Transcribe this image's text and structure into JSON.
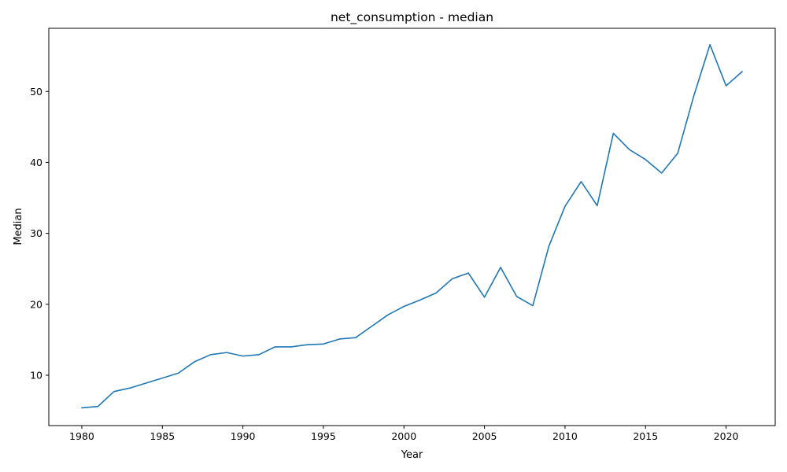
{
  "chart_data": {
    "type": "line",
    "title": "net_consumption - median",
    "xlabel": "Year",
    "ylabel": "Median",
    "xlim": [
      1977.95,
      2023.05
    ],
    "ylim": [
      2.9,
      58.9
    ],
    "xticks": [
      1980,
      1985,
      1990,
      1995,
      2000,
      2005,
      2010,
      2015,
      2020
    ],
    "yticks": [
      10,
      20,
      30,
      40,
      50
    ],
    "grid": false,
    "legend": "none",
    "series": [
      {
        "color": "#1f77b4",
        "x": [
          1980,
          1981,
          1982,
          1983,
          1984,
          1985,
          1986,
          1987,
          1988,
          1989,
          1990,
          1991,
          1992,
          1993,
          1994,
          1995,
          1996,
          1997,
          1998,
          1999,
          2000,
          2001,
          2002,
          2003,
          2004,
          2005,
          2006,
          2007,
          2008,
          2009,
          2010,
          2011,
          2012,
          2013,
          2014,
          2015,
          2016,
          2017,
          2018,
          2019,
          2020,
          2021
        ],
        "values": [
          5.4,
          5.6,
          7.7,
          8.2,
          8.9,
          9.6,
          10.3,
          11.9,
          12.9,
          13.2,
          12.7,
          12.9,
          14.0,
          14.0,
          14.3,
          14.4,
          15.1,
          15.3,
          16.9,
          18.5,
          19.7,
          20.6,
          21.6,
          23.6,
          24.4,
          21.0,
          25.2,
          21.1,
          19.8,
          28.2,
          33.8,
          37.3,
          33.9,
          44.1,
          41.8,
          40.4,
          38.5,
          41.3,
          49.4,
          56.6,
          50.8,
          52.8
        ]
      }
    ]
  }
}
